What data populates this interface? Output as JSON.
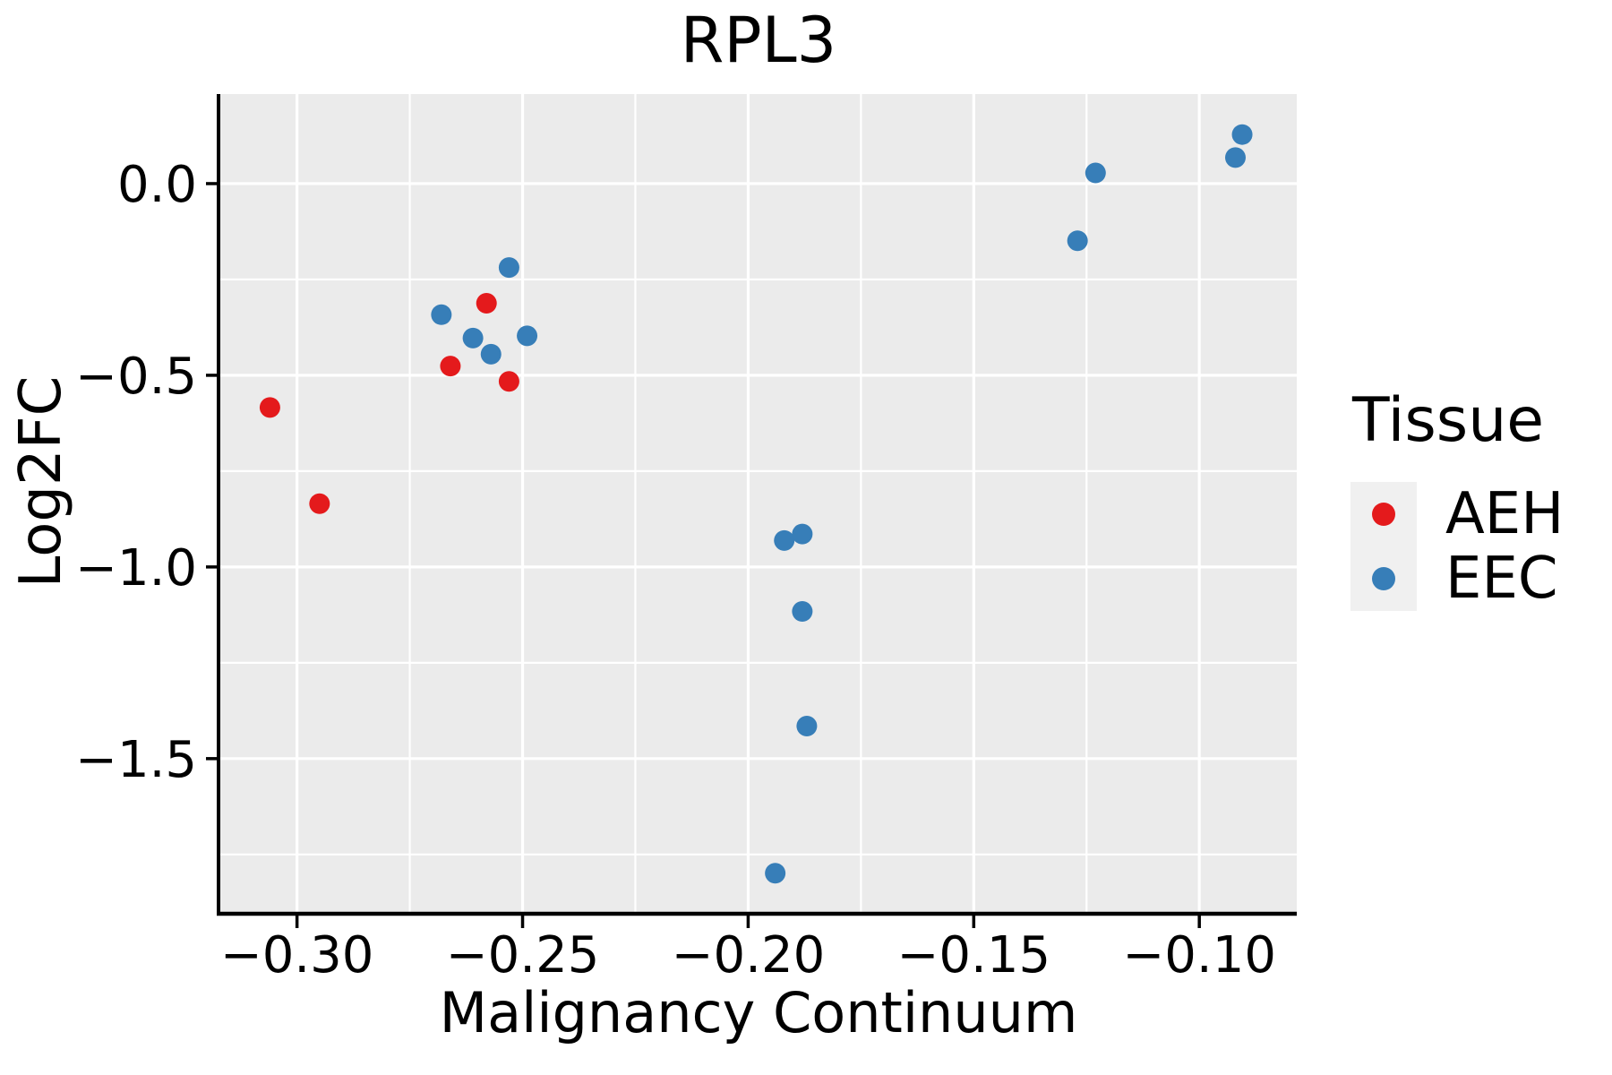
{
  "colors": {
    "panel_bg": "#ebebeb",
    "grid": "#ffffff",
    "spine": "#000000",
    "tick": "#000000",
    "text": "#000000",
    "legend_key_bg": "#f0f0f0",
    "aeh": "#e41a1c",
    "eec": "#377eb8"
  },
  "chart_data": {
    "type": "scatter",
    "title": "RPL3",
    "xlabel": "Malignancy Continuum",
    "ylabel": "Log2FC",
    "legend_title": "Tissue",
    "legend_position": "right-center",
    "grid": true,
    "panel_background": "#ebebeb",
    "xlim": [
      -0.317,
      -0.0784
    ],
    "ylim": [
      -1.9,
      0.2336
    ],
    "x_major_ticks": [
      -0.3,
      -0.25,
      -0.2,
      -0.15,
      -0.1
    ],
    "x_tick_labels": [
      "−0.30",
      "−0.25",
      "−0.20",
      "−0.15",
      "−0.10"
    ],
    "x_minor_ticks": [
      -0.275,
      -0.225,
      -0.175,
      -0.125
    ],
    "y_major_ticks": [
      0.0,
      -0.5,
      -1.0,
      -1.5
    ],
    "y_tick_labels": [
      "0.0",
      "−0.5",
      "−1.0",
      "−1.5"
    ],
    "y_minor_ticks": [
      -0.25,
      -0.75,
      -1.25,
      -1.75
    ],
    "series": [
      {
        "name": "AEH",
        "id": "aeh",
        "color": "#e41a1c",
        "points": [
          [
            -0.306,
            -0.584
          ],
          [
            -0.295,
            -0.835
          ],
          [
            -0.258,
            -0.312
          ],
          [
            -0.266,
            -0.476
          ],
          [
            -0.253,
            -0.516
          ]
        ]
      },
      {
        "name": "EEC",
        "id": "eec",
        "color": "#377eb8",
        "points": [
          [
            -0.253,
            -0.219
          ],
          [
            -0.268,
            -0.342
          ],
          [
            -0.261,
            -0.403
          ],
          [
            -0.249,
            -0.397
          ],
          [
            -0.257,
            -0.445
          ],
          [
            -0.192,
            -0.931
          ],
          [
            -0.188,
            -0.914
          ],
          [
            -0.188,
            -1.116
          ],
          [
            -0.187,
            -1.415
          ],
          [
            -0.194,
            -1.799
          ],
          [
            -0.123,
            0.028
          ],
          [
            -0.127,
            -0.149
          ],
          [
            -0.0905,
            0.128
          ],
          [
            -0.092,
            0.068
          ]
        ]
      }
    ]
  }
}
